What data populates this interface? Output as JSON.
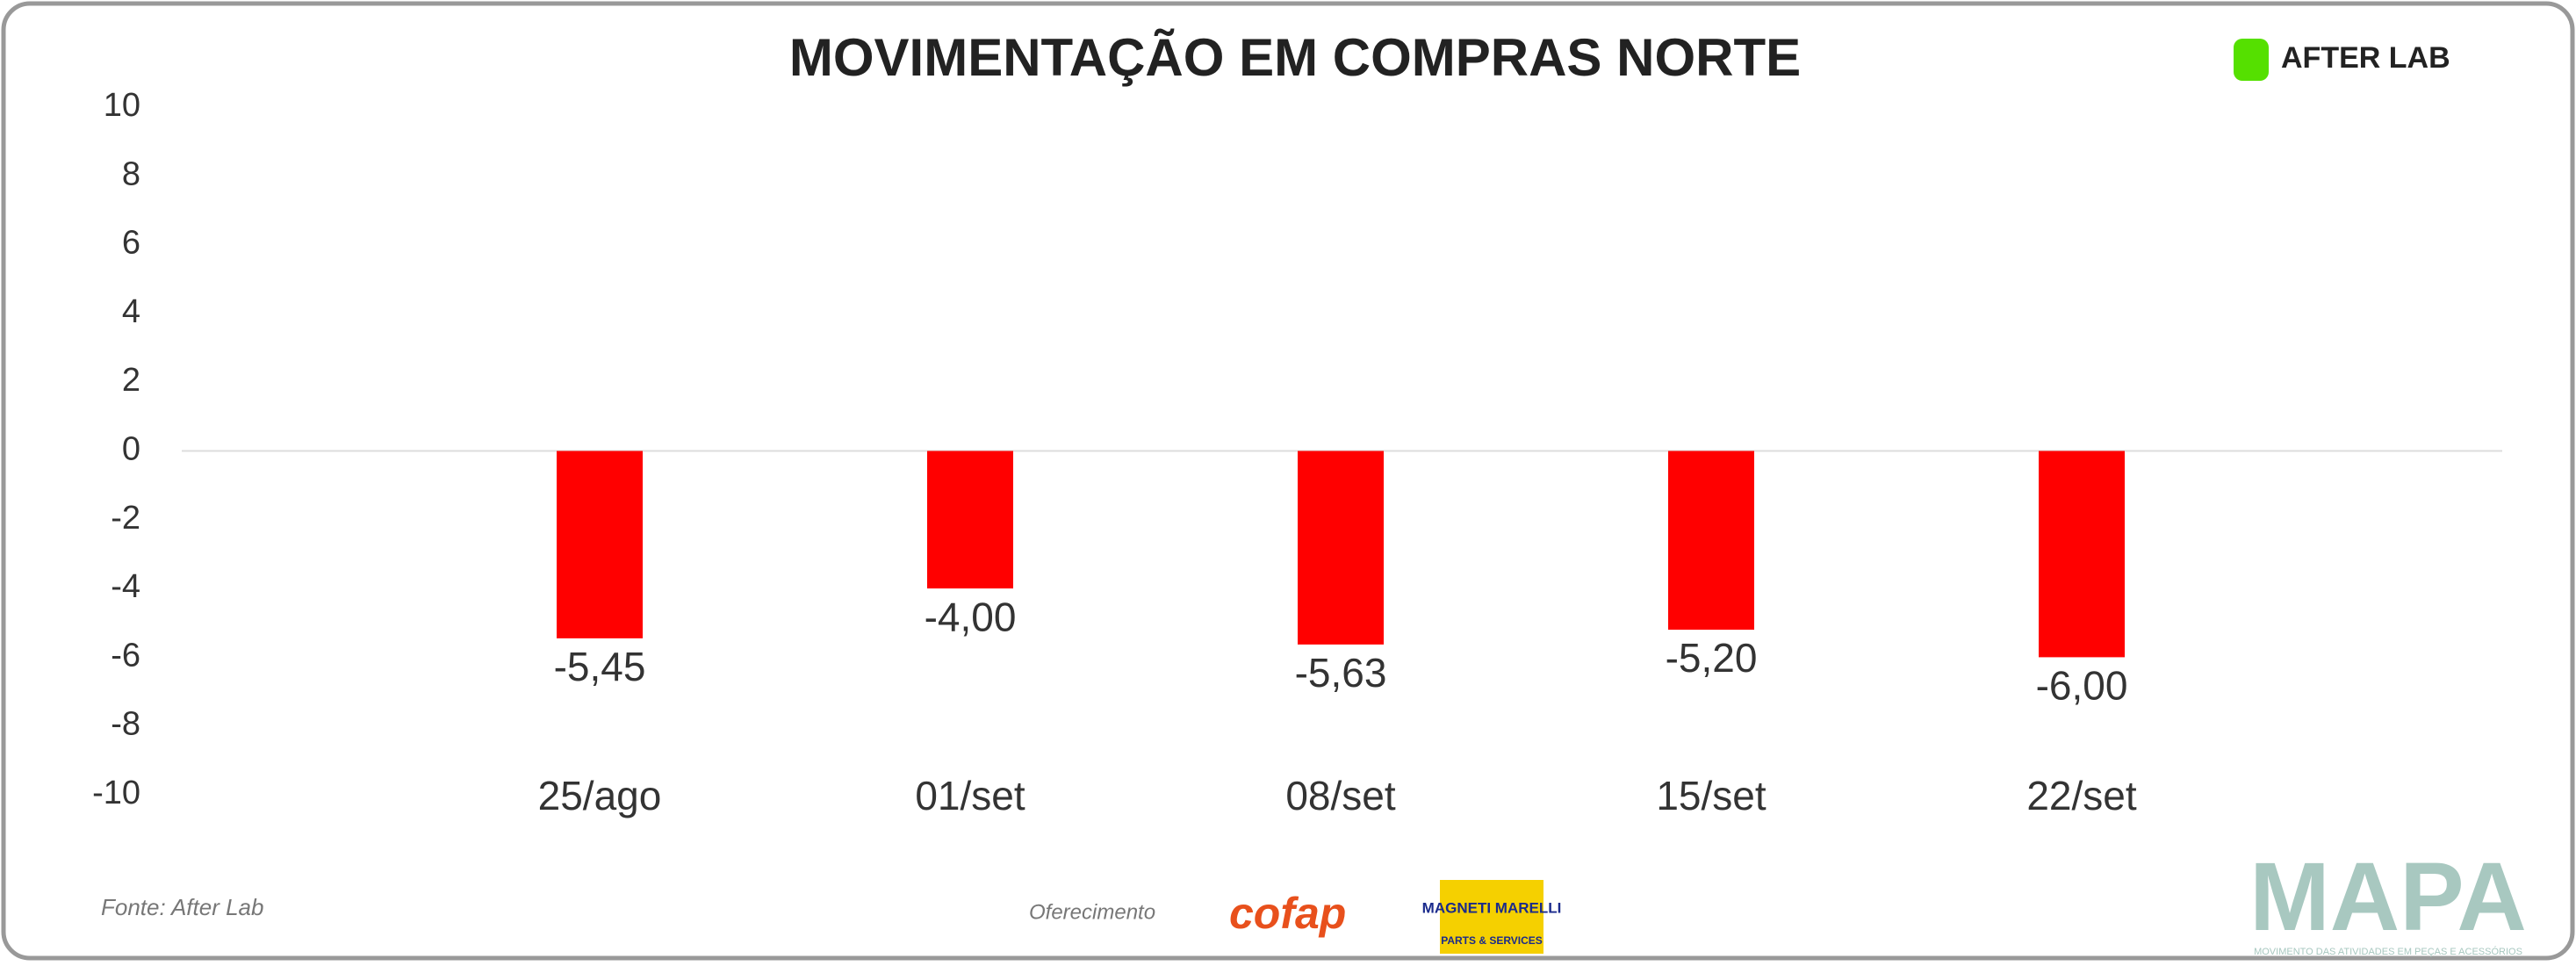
{
  "chart_data": {
    "type": "bar",
    "title": "MOVIMENTAÇÃO EM COMPRAS NORTE",
    "categories": [
      "25/ago",
      "01/set",
      "08/set",
      "15/set",
      "22/set"
    ],
    "values": [
      -5.45,
      -4.0,
      -5.63,
      -5.2,
      -6.0
    ],
    "value_labels": [
      "-5,45",
      "-4,00",
      "-5,63",
      "-5,20",
      "-6,00"
    ],
    "color": "#ff0000",
    "ylim": [
      -10,
      10
    ],
    "yticks": [
      -10,
      -8,
      -6,
      -4,
      -2,
      0,
      2,
      4,
      6,
      8,
      10
    ]
  },
  "source": "Fonte: After Lab",
  "sponsor_label": "Oferecimento",
  "logos": {
    "afterlab": "AFTER LAB",
    "cofap": "cofap",
    "magneti": "MAGNETI MARELLI",
    "magneti_sub": "PARTS & SERVICES",
    "mapa": "MAPA",
    "mapa_sub": "MOVIMENTO DAS ATIVIDADES EM PEÇAS E ACESSÓRIOS"
  }
}
